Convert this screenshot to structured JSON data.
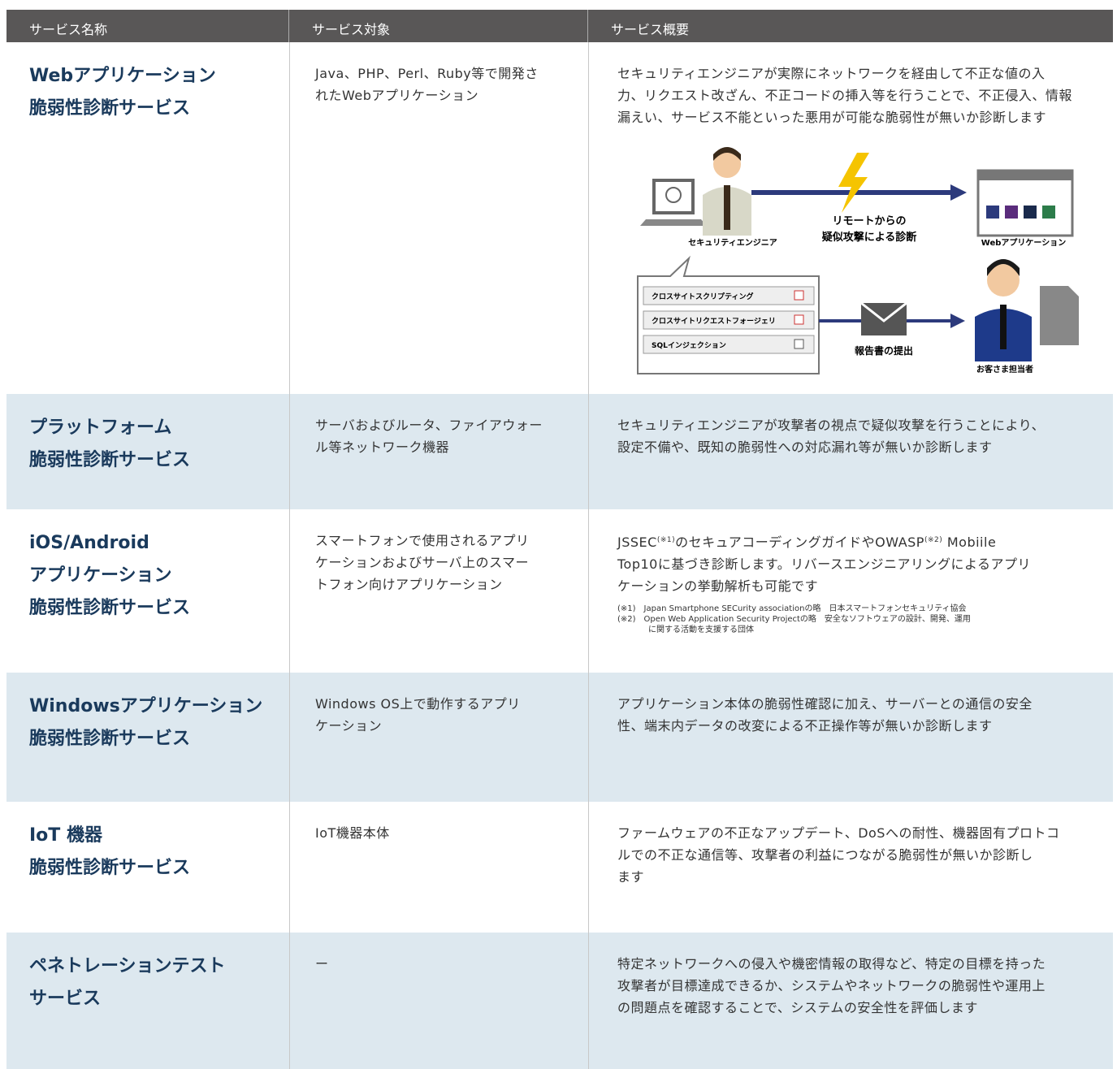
{
  "table": {
    "header": [
      "サービス名称",
      "サービス対象",
      "サービス概要"
    ],
    "rows": [
      {
        "name": [
          "Webアプリケーション",
          "脆弱性診断サービス"
        ],
        "target": [
          "Java、PHP、Perl、Ruby等で開発さ",
          "れたWebアプリケーション"
        ],
        "description": [
          [
            {
              "text": "セキュリティエンジニアが実際にネットワークを経由して不正な値の入"
            }
          ],
          [
            {
              "text": "力、リクエスト改ざん、不正コードの挿入等を行うことで、不正侵入、情報"
            }
          ],
          [
            {
              "text": "漏えい、サービス不能といった悪用が可能な脆弱性が無いか診断します"
            }
          ]
        ]
      },
      {
        "name": [
          "プラットフォーム",
          "脆弱性診断サービス"
        ],
        "target": [
          "サーバおよびルータ、ファイアウォー",
          "ル等ネットワーク機器"
        ],
        "description": [
          [
            {
              "text": "セキュリティエンジニアが攻撃者の視点で疑似攻撃を行うことにより、"
            }
          ],
          [
            {
              "text": "設定不備や、既知の脆弱性への対応漏れ等が無いか診断します"
            }
          ]
        ]
      },
      {
        "name": [
          "iOS/Android",
          "アプリケーション",
          "脆弱性診断サービス"
        ],
        "target": [
          "スマートフォンで使用されるアプリ",
          "ケーションおよびサーバ上のスマー",
          "トフォン向けアプリケーション"
        ],
        "description": [
          [
            {
              "text": "JSSEC"
            },
            {
              "sup": "(※1)"
            },
            {
              "text": "のセキュアコーディングガイドやOWASP"
            },
            {
              "sup": "(※2)"
            },
            {
              "text": " Mobiile"
            }
          ],
          [
            {
              "text": "Top10に基づき診断します。リバースエンジニアリングによるアプリ"
            }
          ],
          [
            {
              "text": "ケーションの挙動解析も可能です"
            }
          ]
        ],
        "notes": [
          "(※1)　Japan Smartphone SECurity associationの略　日本スマートフォンセキュリティ協会",
          "(※2)　Open Web Application Security Projectの略　安全なソフトウェアの設計、開発、運用",
          "に関する活動を支援する団体"
        ]
      },
      {
        "name": [
          "Windowsアプリケーション",
          "脆弱性診断サービス"
        ],
        "target": [
          "Windows OS上で動作するアプリ",
          "ケーション"
        ],
        "description": [
          [
            {
              "text": "アプリケーション本体の脆弱性確認に加え、サーバーとの通信の安全"
            }
          ],
          [
            {
              "text": "性、端末内データの改変による不正操作等が無いか診断します"
            }
          ]
        ]
      },
      {
        "name": [
          "IoT 機器",
          "脆弱性診断サービス"
        ],
        "target": [
          "IoT機器本体"
        ],
        "description": [
          [
            {
              "text": "ファームウェアの不正なアップデート、DoSへの耐性、機器固有プロトコ"
            }
          ],
          [
            {
              "text": "ルでの不正な通信等、攻撃者の利益につながる脆弱性が無いか診断し"
            }
          ],
          [
            {
              "text": "ます"
            }
          ]
        ]
      },
      {
        "name": [
          "ペネトレーションテスト",
          "サービス"
        ],
        "target": [
          "ー"
        ],
        "description": [
          [
            {
              "text": "特定ネットワークへの侵入や機密情報の取得など、特定の目標を持った"
            }
          ],
          [
            {
              "text": "攻撃者が目標達成できるか、システムやネットワークの脆弱性や運用上"
            }
          ],
          [
            {
              "text": "の問題点を確認することで、システムの安全性を評価します"
            }
          ]
        ]
      }
    ]
  },
  "diagram": {
    "engineer": "セキュリティエンジニア",
    "attack": [
      "リモートからの",
      "疑似攻撃による診断"
    ],
    "webapp": "Webアプリケーション",
    "checklist": [
      "クロスサイトスクリプティング",
      "クロスサイトリクエストフォージェリ",
      "SQLインジェクション"
    ],
    "report": "報告書の提出",
    "customer": "お客さま担当者"
  }
}
